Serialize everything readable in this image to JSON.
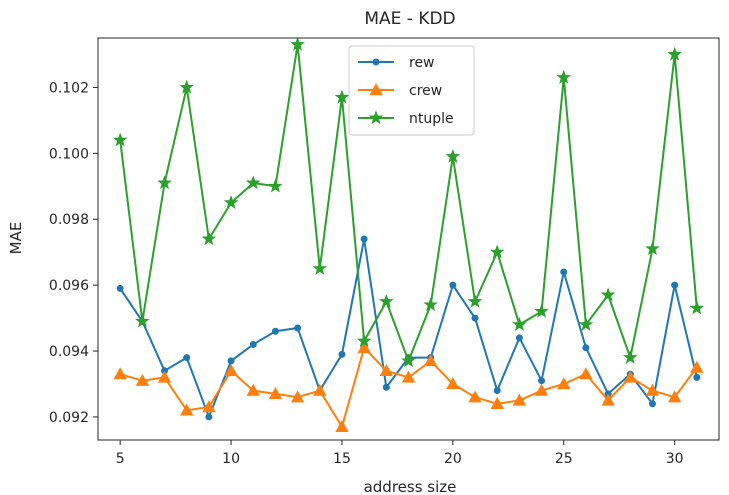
{
  "chart_data": {
    "type": "line",
    "title": "MAE - KDD",
    "xlabel": "address size",
    "ylabel": "MAE",
    "xlim": [
      4.0,
      32.0
    ],
    "ylim": [
      0.0913,
      0.1035
    ],
    "xticks": [
      5,
      10,
      15,
      20,
      25,
      30
    ],
    "yticks": [
      0.092,
      0.094,
      0.096,
      0.098,
      0.1,
      0.102
    ],
    "ytick_labels": [
      "0.092",
      "0.094",
      "0.096",
      "0.098",
      "0.100",
      "0.102"
    ],
    "grid": false,
    "legend_position": "top-center",
    "x": [
      5,
      6,
      7,
      8,
      9,
      10,
      11,
      12,
      13,
      14,
      15,
      16,
      17,
      18,
      19,
      20,
      21,
      22,
      23,
      24,
      25,
      26,
      27,
      28,
      29,
      30,
      31
    ],
    "series": [
      {
        "name": "rew",
        "color": "#1f77b4",
        "marker": "circle",
        "values": [
          0.0959,
          0.0949,
          0.0934,
          0.0938,
          0.092,
          0.0937,
          0.0942,
          0.0946,
          0.0947,
          0.0928,
          0.0939,
          0.0974,
          0.0929,
          0.0938,
          0.0938,
          0.096,
          0.095,
          0.0928,
          0.0944,
          0.0931,
          0.0964,
          0.0941,
          0.0927,
          0.0933,
          0.0924,
          0.096,
          0.0932
        ]
      },
      {
        "name": "crew",
        "color": "#ff7f0e",
        "marker": "triangle",
        "values": [
          0.0933,
          0.0931,
          0.0932,
          0.0922,
          0.0923,
          0.0934,
          0.0928,
          0.0927,
          0.0926,
          0.0928,
          0.0917,
          0.0941,
          0.0934,
          0.0932,
          0.0937,
          0.093,
          0.0926,
          0.0924,
          0.0925,
          0.0928,
          0.093,
          0.0933,
          0.0925,
          0.0932,
          0.0928,
          0.0926,
          0.0935
        ]
      },
      {
        "name": "ntuple",
        "color": "#2ca02c",
        "marker": "star",
        "values": [
          0.1004,
          0.0949,
          0.0991,
          0.102,
          0.0974,
          0.0985,
          0.0991,
          0.099,
          0.1033,
          0.0965,
          0.1017,
          0.0943,
          0.0955,
          0.0937,
          0.0954,
          0.0999,
          0.0955,
          0.097,
          0.0948,
          0.0952,
          0.1023,
          0.0948,
          0.0957,
          0.0938,
          0.0971,
          0.103,
          0.0953
        ]
      }
    ]
  }
}
